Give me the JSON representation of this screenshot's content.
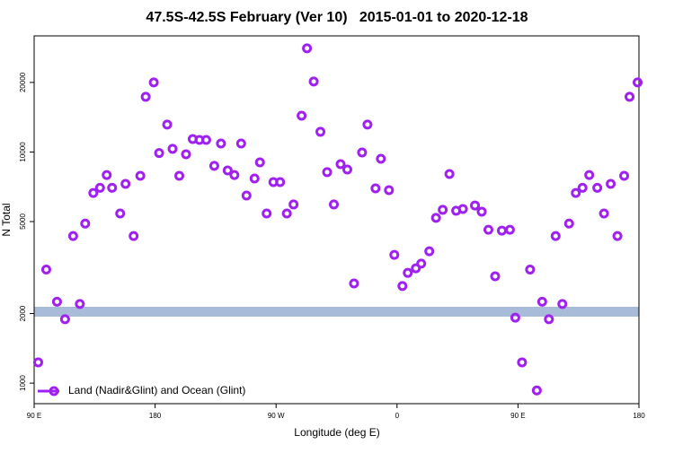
{
  "chart_data": {
    "type": "scatter",
    "title": "47.5S-42.5S February (Ver 10)   2015-01-01 to 2020-12-18",
    "x_label": "Longitude (deg E)",
    "y_label": "N Total",
    "y_scale": "log",
    "xlim": [
      90,
      540
    ],
    "ylim": [
      815,
      31800
    ],
    "xticks": [
      {
        "value": 90,
        "label": "90 E"
      },
      {
        "value": 180,
        "label": "180"
      },
      {
        "value": 270,
        "label": "90 W"
      },
      {
        "value": 360,
        "label": "0"
      },
      {
        "value": 450,
        "label": "90 E"
      },
      {
        "value": 540,
        "label": "180"
      }
    ],
    "yticks": [
      1000,
      2000,
      5000,
      10000,
      20000
    ],
    "legend_position": "bottom-left",
    "x": [
      93,
      99,
      107,
      113,
      119,
      124,
      128,
      134,
      139,
      144,
      148,
      154,
      158,
      164,
      169,
      173,
      179,
      183,
      189,
      193,
      198,
      203,
      208,
      213,
      218,
      224,
      229,
      234,
      239,
      244,
      248,
      254,
      258,
      263,
      268,
      273,
      278,
      283,
      289,
      293,
      298,
      303,
      308,
      313,
      318,
      323,
      328,
      334,
      338,
      344,
      348,
      354,
      358,
      364,
      368,
      374,
      378,
      384,
      389,
      394,
      399,
      404,
      409,
      418,
      423,
      428,
      433,
      438,
      444,
      448,
      453,
      459,
      464,
      468,
      473,
      478,
      483,
      488,
      493,
      498,
      503,
      509,
      514,
      519,
      524,
      529,
      533,
      539
    ],
    "series": [
      {
        "name": "Land (Nadir&Glint) and Ocean (Glint)",
        "color": "#a020f0",
        "values": [
          1230,
          3100,
          2250,
          1890,
          4330,
          2200,
          4900,
          6650,
          7000,
          7950,
          7000,
          5420,
          7280,
          4330,
          7890,
          17330,
          20000,
          9900,
          13140,
          10320,
          7890,
          9780,
          11380,
          11280,
          11280,
          8710,
          10880,
          8320,
          7950,
          10880,
          6480,
          7680,
          9020,
          5420,
          7410,
          7410,
          5420,
          5930,
          14360,
          28100,
          20180,
          12230,
          8180,
          5930,
          8860,
          8400,
          2700,
          9950,
          13140,
          6960,
          9350,
          6840,
          3590,
          2630,
          3000,
          3140,
          3290,
          3720,
          5190,
          5620,
          8030,
          5570,
          5670,
          5870,
          5520,
          4610,
          2900,
          4570,
          4610,
          1920,
          1230,
          3100,
          930,
          2250,
          1890,
          4330,
          2200,
          4900,
          6650,
          7000,
          7950,
          7000,
          5420,
          7280,
          4330,
          7890,
          17330,
          20000
        ]
      }
    ]
  }
}
